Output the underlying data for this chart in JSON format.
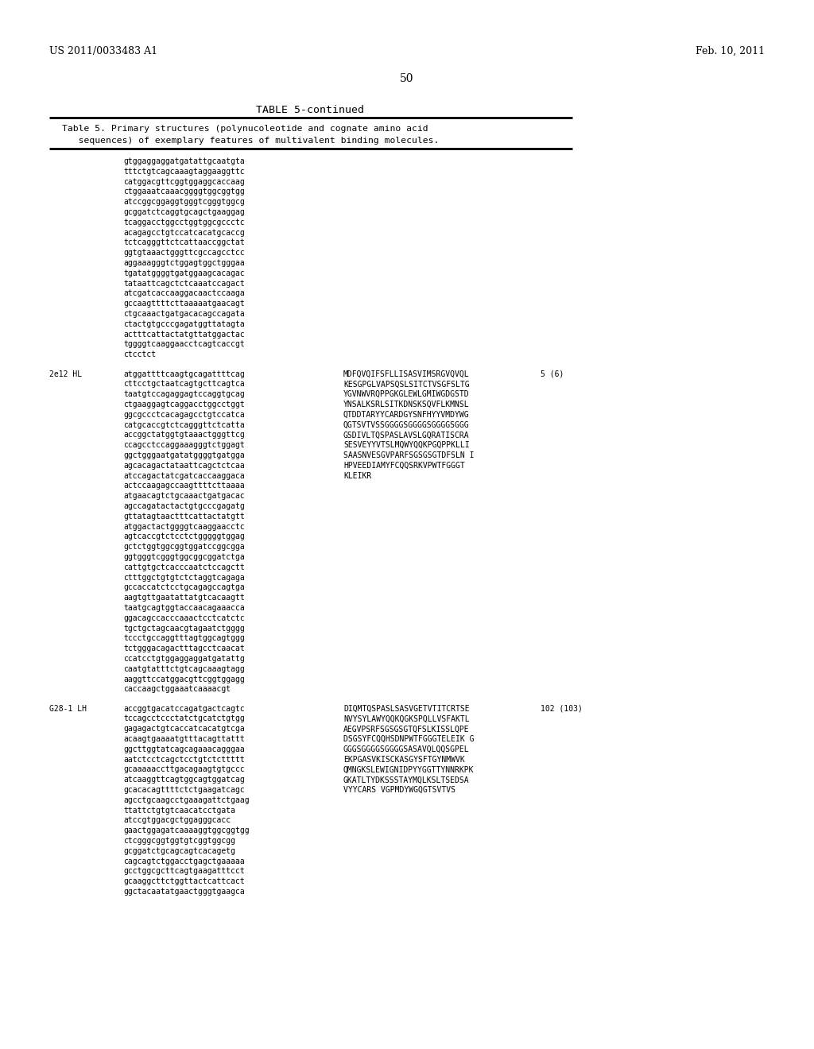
{
  "header_left": "US 2011/0033483 A1",
  "header_right": "Feb. 10, 2011",
  "page_number": "50",
  "table_title": "TABLE 5-continued",
  "table_caption_line1": "Table 5. Primary structures (polynucoleotide and cognate amino acid",
  "table_caption_line2": "   sequences) of exemplary features of multivalent binding molecules.",
  "background_color": "#ffffff",
  "text_color": "#000000",
  "lines": [
    {
      "type": "seq",
      "left": "gtggaggaggatgatattgcaatgta",
      "right": ""
    },
    {
      "type": "seq",
      "left": "tttctgtcagcaaagtaggaaggttc",
      "right": ""
    },
    {
      "type": "seq",
      "left": "catggacgttcggtggaggcaccaag",
      "right": ""
    },
    {
      "type": "seq",
      "left": "ctggaaatcaaacggggtggcggtgg",
      "right": ""
    },
    {
      "type": "seq",
      "left": "atccggcggaggtgggtcgggtggcg",
      "right": ""
    },
    {
      "type": "seq",
      "left": "gcggatctcaggtgcagctgaaggag",
      "right": ""
    },
    {
      "type": "seq",
      "left": "tcaggacctggcctggtggcgccctc",
      "right": ""
    },
    {
      "type": "seq",
      "left": "acagagcctgtccatcacatgcaccg",
      "right": ""
    },
    {
      "type": "seq",
      "left": "tctcagggttctcattaaccggctat",
      "right": ""
    },
    {
      "type": "seq",
      "left": "ggtgtaaactgggttcgccagcctcc",
      "right": ""
    },
    {
      "type": "seq",
      "left": "aggaaagggtctggagtggctgggaa",
      "right": ""
    },
    {
      "type": "seq",
      "left": "tgatatggggtgatggaagcacagac",
      "right": ""
    },
    {
      "type": "seq",
      "left": "tataattcagctctcaaatccagact",
      "right": ""
    },
    {
      "type": "seq",
      "left": "atcgatcaccaaggacaactccaaga",
      "right": ""
    },
    {
      "type": "seq",
      "left": "gccaagttttcttaaaaatgaacagt",
      "right": ""
    },
    {
      "type": "seq",
      "left": "ctgcaaactgatgacacagccagata",
      "right": ""
    },
    {
      "type": "seq",
      "left": "ctactgtgcccgagatggttatagta",
      "right": ""
    },
    {
      "type": "seq",
      "left": "actttcattactatgttatggactac",
      "right": ""
    },
    {
      "type": "seq",
      "left": "tggggtcaaggaacctcagtcaccgt",
      "right": ""
    },
    {
      "type": "seq",
      "left": "ctcctct",
      "right": ""
    },
    {
      "type": "blank",
      "left": "",
      "right": ""
    },
    {
      "type": "label",
      "left": "2e12 HL",
      "seq": "atggattttcaagtgcagattttcag",
      "right": "MDFQVQIFSFLLISASVIMSRGVQVQL",
      "num": "5 (6)"
    },
    {
      "type": "seq2",
      "left": "cttcctgctaatcagtgcttcagtca",
      "right": "KESGPGLVAPSQSLSITCTVSGFSLTG"
    },
    {
      "type": "seq2",
      "left": "taatgtccagaggagtccaggtgcag",
      "right": "YGVNWVRQPPGKGLEWLGMIWGDGSTD"
    },
    {
      "type": "seq2",
      "left": "ctgaaggagtcaggacctggcctggt",
      "right": "YNSALKSRLSITKDNSKSQVFLKMNSL"
    },
    {
      "type": "seq2",
      "left": "ggcgccctcacagagcctgtccatca",
      "right": "QTDDTARYYCARDGYSNFHYYVMDYWG"
    },
    {
      "type": "seq2",
      "left": "catgcaccgtctcagggttctcatta",
      "right": "QGTSVTVSSGGGGSGGGGSGGGGSGGG"
    },
    {
      "type": "seq2",
      "left": "accggctatggtgtaaactgggttcg",
      "right": "GSDIVLTQSPASLAVSLGQRATISCRA"
    },
    {
      "type": "seq2",
      "left": "ccagcctccaggaaagggtctggagt",
      "right": "SESVEYYVTSLMQWYQQKPGQPPKLLI"
    },
    {
      "type": "seq2",
      "left": "ggctgggaatgatatggggtgatgga",
      "right": "SAASNVESGVPARFSGSGSGTDFSLN I"
    },
    {
      "type": "seq2",
      "left": "agcacagactataattcagctctcaa",
      "right": "HPVEEDIAMYFCQQSRKVPWTFGGGT"
    },
    {
      "type": "seq2",
      "left": "atccagactatcgatcaccaaggaca",
      "right": "KLEIKR"
    },
    {
      "type": "seq",
      "left": "actccaagagccaagttttcttaaaa",
      "right": ""
    },
    {
      "type": "seq",
      "left": "atgaacagtctgcaaactgatgacac",
      "right": ""
    },
    {
      "type": "seq",
      "left": "agccagatactactgtgcccgagatg",
      "right": ""
    },
    {
      "type": "seq",
      "left": "gttatagtaactttcattactatgtt",
      "right": ""
    },
    {
      "type": "seq",
      "left": "atggactactggggtcaaggaacctc",
      "right": ""
    },
    {
      "type": "seq",
      "left": "agtcaccgtctcctctgggggtggag",
      "right": ""
    },
    {
      "type": "seq",
      "left": "gctctggtggcggtggatccggcgga",
      "right": ""
    },
    {
      "type": "seq",
      "left": "ggtgggtcgggtggcggcggatctga",
      "right": ""
    },
    {
      "type": "seq",
      "left": "cattgtgctcacccaatctccagctt",
      "right": ""
    },
    {
      "type": "seq",
      "left": "ctttggctgtgtctctaggtcagaga",
      "right": ""
    },
    {
      "type": "seq",
      "left": "gccaccatctcctgcagagccagtga",
      "right": ""
    },
    {
      "type": "seq",
      "left": "aagtgttgaatattatgtcacaagtt",
      "right": ""
    },
    {
      "type": "seq",
      "left": "taatgcagtggtaccaacagaaacca",
      "right": ""
    },
    {
      "type": "seq",
      "left": "ggacagccacccaaactcctcatctc",
      "right": ""
    },
    {
      "type": "seq",
      "left": "tgctgctagcaacgtagaatctgggg",
      "right": ""
    },
    {
      "type": "seq",
      "left": "tccctgccaggtttagtggcagtggg",
      "right": ""
    },
    {
      "type": "seq",
      "left": "tctgggacagactttagcctcaacat",
      "right": ""
    },
    {
      "type": "seq",
      "left": "ccatcctgtggaggaggatgatattg",
      "right": ""
    },
    {
      "type": "seq",
      "left": "caatgtatttctgtcagcaaagtagg",
      "right": ""
    },
    {
      "type": "seq",
      "left": "aaggttccatggacgttcggtggagg",
      "right": ""
    },
    {
      "type": "seq",
      "left": "caccaagctggaaatcaaaacgt",
      "right": ""
    },
    {
      "type": "blank",
      "left": "",
      "right": ""
    },
    {
      "type": "label",
      "left": "G28-1 LH",
      "seq": "accggtgacatccagatgactcagtc",
      "right": "DIQMTQSPASLSASVGETVTITCRTSE",
      "num": "102 (103)"
    },
    {
      "type": "seq2",
      "left": "tccagcctccctatctgcatctgtgg",
      "right": "NVYSYLAWYQQKQGKSPQLLVSFAKTL"
    },
    {
      "type": "seq2",
      "left": "gagagactgtcaccatcacatgtcga",
      "right": "AEGVPSRFSGSGSGTQFSLKISSLQPE"
    },
    {
      "type": "seq2",
      "left": "acaagtgaaaatgtttacagttattt",
      "right": "DSGSYFCQQHSDNPWTFGGGTELEIK G"
    },
    {
      "type": "seq2",
      "left": "ggcttggtatcagcagaaacagggaa",
      "right": "GGGSGGGGSGGGGSASAVQLQQSGPEL"
    },
    {
      "type": "seq2",
      "left": "aatctcctcagctcctgtctcttttt",
      "right": "EKPGASVKISCKASGYSFTGYNMWVK"
    },
    {
      "type": "seq2",
      "left": "gcaaaaaccttgacagaagtgtgccc",
      "right": "QMNGKSLEWIGNIDPYYGGTTYNNRKPK"
    },
    {
      "type": "seq2",
      "left": "atcaaggttcagtggcagtggatcag",
      "right": "GKATLTYDKSSSTAYMQLKSLTSEDSA"
    },
    {
      "type": "seq2",
      "left": "gcacacagttttctctgaagatcagc",
      "right": "VYYCARS VGPMDYWGQGTSVTVS"
    },
    {
      "type": "seq2",
      "left": "agcctgcaagcctgaaagattctgaag",
      "right": ""
    },
    {
      "type": "seq2",
      "left": "ttattctgtgtcaacatcctgata",
      "right": ""
    },
    {
      "type": "seq",
      "left": "atccgtggacgctggagggcacc",
      "right": ""
    },
    {
      "type": "seq",
      "left": "gaactggagatcaaaaggtggcggtgg",
      "right": ""
    },
    {
      "type": "seq",
      "left": "ctcgggcggtggtgtcggtggcgg",
      "right": ""
    },
    {
      "type": "seq",
      "left": "gcggatctgcagcagtcacagetg",
      "right": ""
    },
    {
      "type": "seq",
      "left": "cagcagtctggacctgagctgaaaaa",
      "right": ""
    },
    {
      "type": "seq",
      "left": "gcctggcgcttcagtgaagatttcct",
      "right": ""
    },
    {
      "type": "seq",
      "left": "gcaaggcttctggttactcattcact",
      "right": ""
    },
    {
      "type": "seq",
      "left": "ggctacaatatgaactgggtgaagca",
      "right": ""
    }
  ]
}
